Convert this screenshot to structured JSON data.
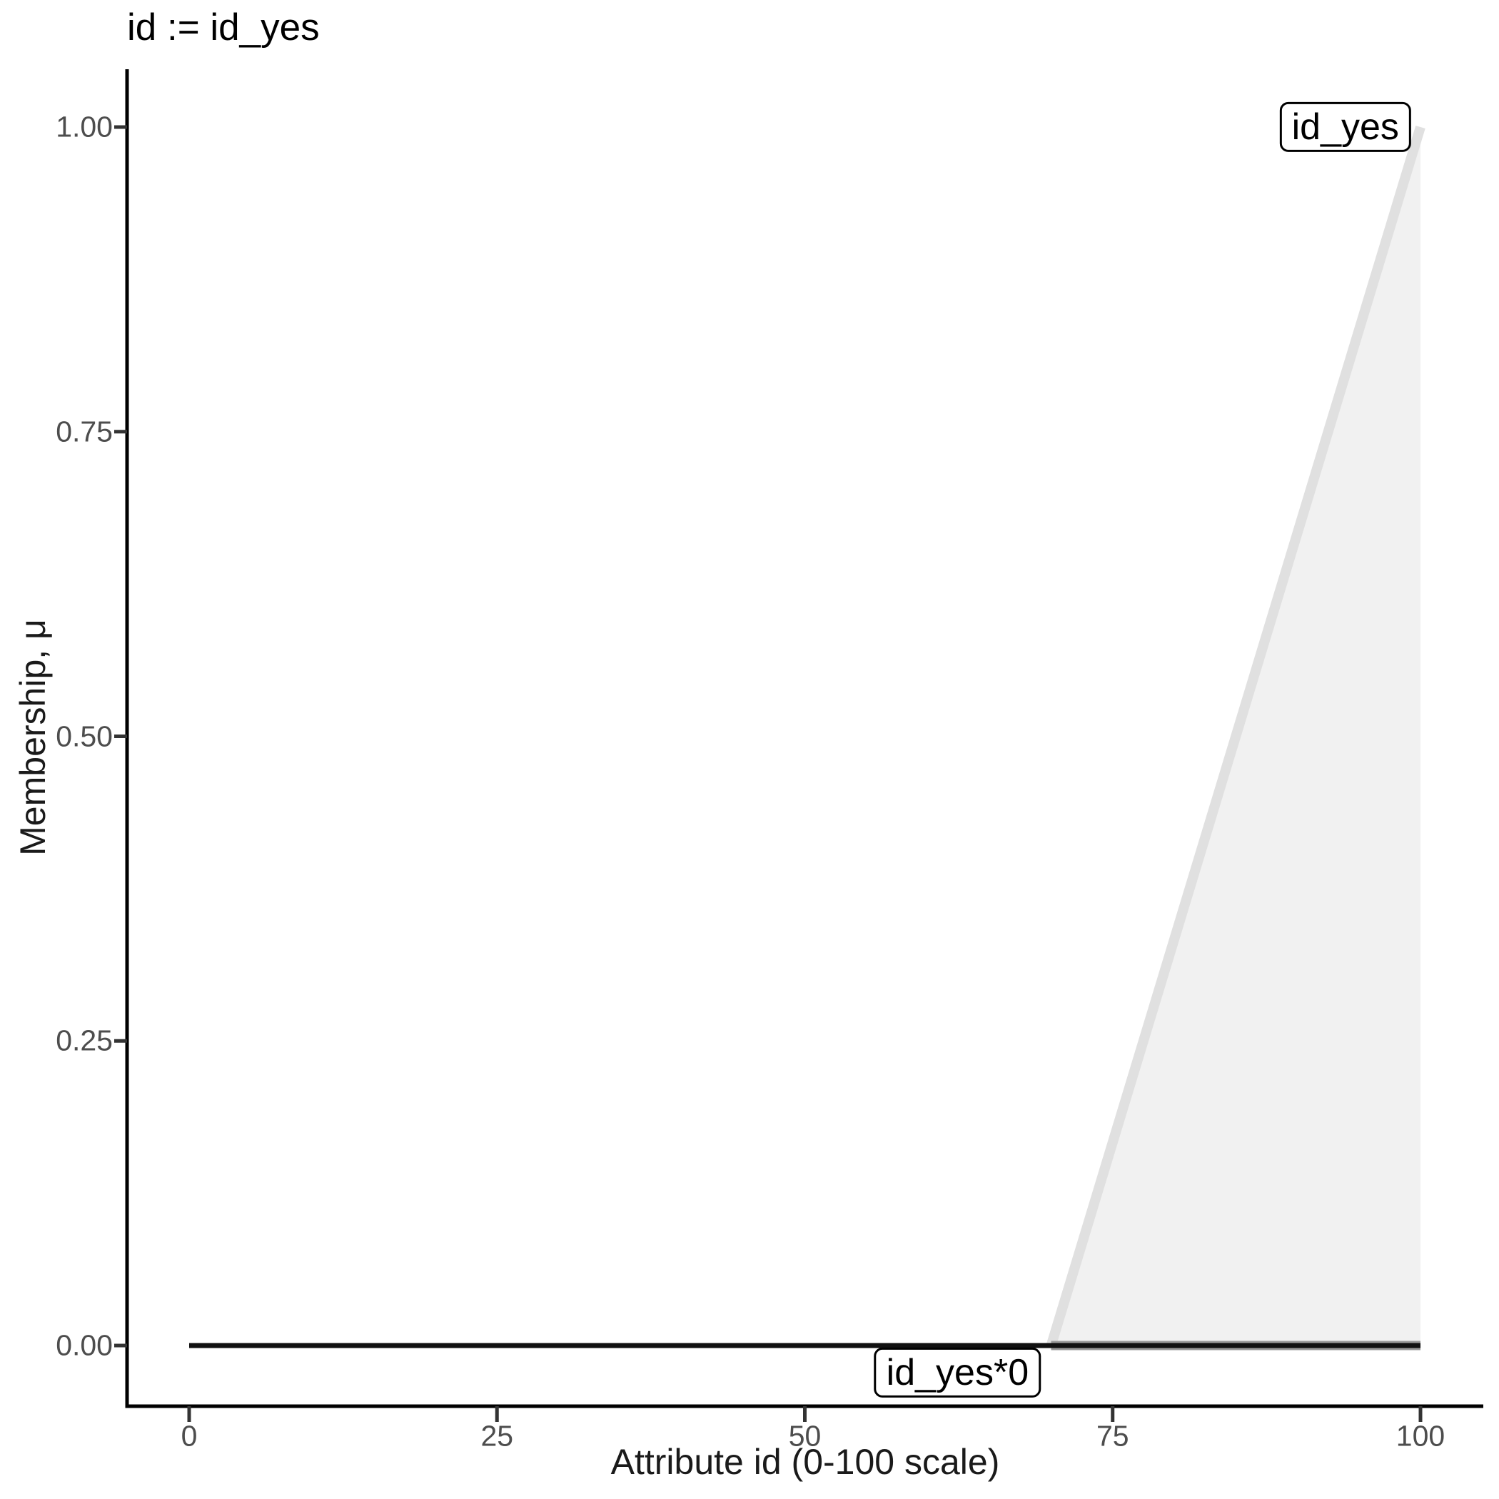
{
  "chart_data": {
    "type": "area",
    "title": "id := id_yes",
    "xlabel": "Attribute id (0-100 scale)",
    "ylabel": "Membership, μ",
    "xlim": [
      0,
      100
    ],
    "ylim": [
      0,
      1
    ],
    "grid": false,
    "legend_position": "none (direct boxed labels on plot)",
    "x_ticks": {
      "values": [
        0,
        25,
        50,
        75,
        100
      ],
      "labels": [
        "0",
        "25",
        "50",
        "75",
        "100"
      ]
    },
    "y_ticks": {
      "values": [
        0,
        0.25,
        0.5,
        0.75,
        1
      ],
      "labels": [
        "0.00",
        "0.25",
        "0.50",
        "0.75",
        "1.00"
      ]
    },
    "series": [
      {
        "name": "id_yes",
        "type": "fuzzy-membership-triangle",
        "points": [
          [
            70,
            0
          ],
          [
            100,
            1
          ]
        ],
        "area_vertices": [
          [
            70,
            0
          ],
          [
            100,
            1
          ],
          [
            100,
            0
          ]
        ],
        "base_segment": [
          [
            70,
            0
          ],
          [
            100,
            0
          ]
        ],
        "line_color": "#e0e0e0",
        "base_color": "#999999",
        "fill_color": "#f1f1f1"
      },
      {
        "name": "id_yes*0",
        "type": "line",
        "points": [
          [
            0,
            0
          ],
          [
            100,
            0
          ]
        ],
        "line_color": "#111111"
      }
    ],
    "annotations": [
      {
        "text": "id_yes",
        "x": 93.9,
        "y": 1.0
      },
      {
        "text": "id_yes*0",
        "x": 62.4,
        "y": -0.022
      }
    ],
    "colors": {
      "axis": "#000000",
      "tick_mark": "#333333",
      "tick_label": "#4d4d4d",
      "title": "#000000",
      "axis_title": "#1a1a1a",
      "background": "#ffffff"
    }
  }
}
